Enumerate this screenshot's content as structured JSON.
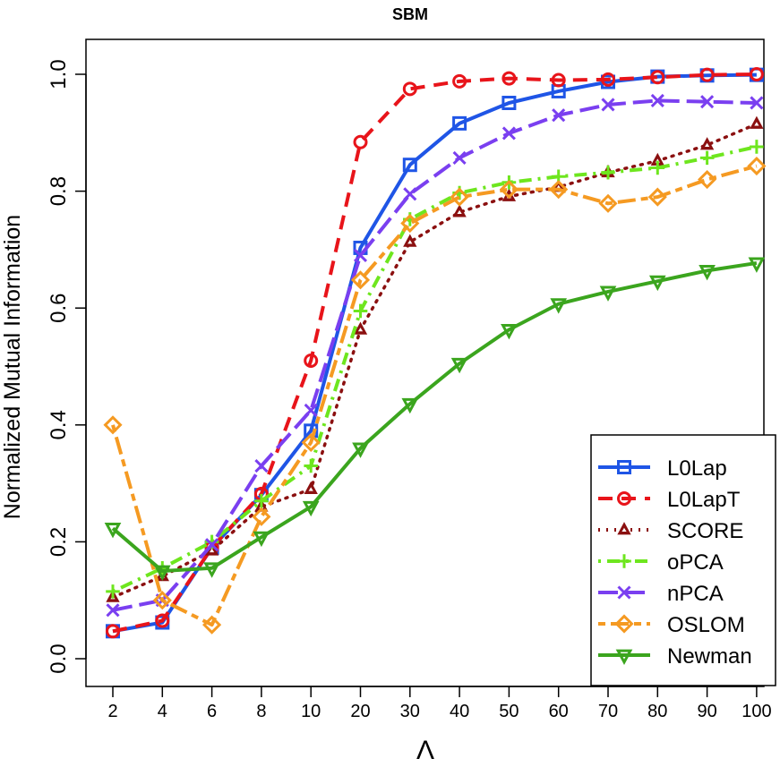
{
  "chart_data": {
    "type": "line",
    "title": "SBM",
    "xlabel": "Λ",
    "ylabel": "Normalized Mutual Information",
    "categories": [
      "2",
      "4",
      "6",
      "8",
      "10",
      "20",
      "30",
      "40",
      "50",
      "60",
      "70",
      "80",
      "90",
      "100"
    ],
    "ylim": [
      0,
      1
    ],
    "yticks": [
      "0.0",
      "0.2",
      "0.4",
      "0.6",
      "0.8",
      "1.0"
    ],
    "legend_position": "bottom-right",
    "grid": false,
    "series": [
      {
        "name": "L0Lap",
        "color": "#1f55e6",
        "dash": "solid",
        "marker": "square",
        "values": [
          0.047,
          0.062,
          0.19,
          0.28,
          0.39,
          0.703,
          0.845,
          0.916,
          0.951,
          0.971,
          0.987,
          0.996,
          0.998,
          0.999
        ]
      },
      {
        "name": "L0LapT",
        "color": "#e8141a",
        "dash": "dashed",
        "marker": "circle",
        "values": [
          0.047,
          0.065,
          0.19,
          0.282,
          0.51,
          0.884,
          0.975,
          0.988,
          0.993,
          0.99,
          0.991,
          0.995,
          0.999,
          1.0
        ]
      },
      {
        "name": "SCORE",
        "color": "#8b1010",
        "dash": "dotted",
        "marker": "triangle-up",
        "values": [
          0.105,
          0.141,
          0.185,
          0.26,
          0.29,
          0.563,
          0.713,
          0.764,
          0.791,
          0.807,
          0.832,
          0.852,
          0.879,
          0.915
        ]
      },
      {
        "name": "oPCA",
        "color": "#6ee61e",
        "dash": "dotdash",
        "marker": "plus",
        "values": [
          0.115,
          0.155,
          0.2,
          0.27,
          0.33,
          0.595,
          0.752,
          0.797,
          0.815,
          0.825,
          0.832,
          0.84,
          0.857,
          0.876
        ]
      },
      {
        "name": "nPCA",
        "color": "#7a3ff0",
        "dash": "longdash",
        "marker": "cross",
        "values": [
          0.083,
          0.1,
          0.195,
          0.33,
          0.425,
          0.69,
          0.795,
          0.857,
          0.899,
          0.93,
          0.948,
          0.955,
          0.953,
          0.951
        ]
      },
      {
        "name": "OSLOM",
        "color": "#f59a22",
        "dash": "twodash",
        "marker": "diamond",
        "values": [
          0.4,
          0.1,
          0.058,
          0.243,
          0.37,
          0.648,
          0.745,
          0.79,
          0.803,
          0.803,
          0.779,
          0.79,
          0.82,
          0.843
        ]
      },
      {
        "name": "Newman",
        "color": "#3ba51e",
        "dash": "solid",
        "marker": "triangle-down",
        "values": [
          0.223,
          0.15,
          0.155,
          0.208,
          0.26,
          0.36,
          0.436,
          0.505,
          0.563,
          0.607,
          0.628,
          0.646,
          0.664,
          0.677
        ]
      }
    ]
  }
}
